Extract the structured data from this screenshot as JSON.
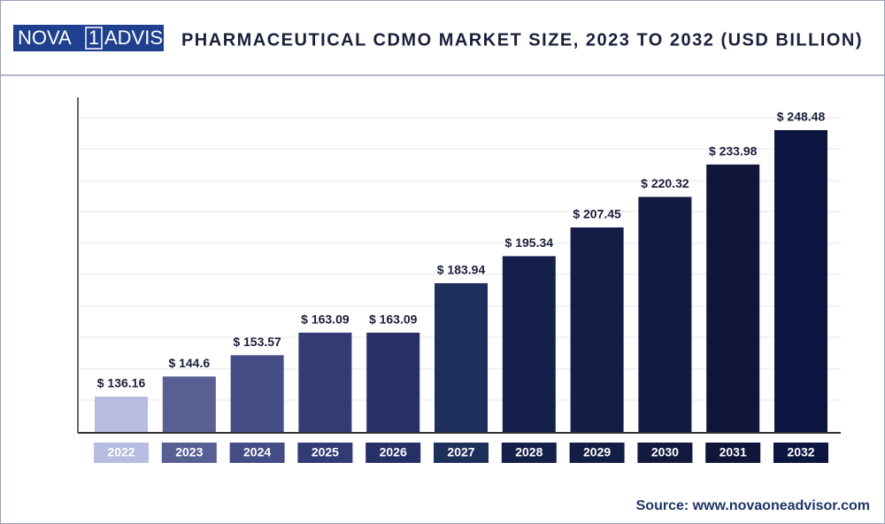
{
  "header": {
    "logo": [
      "NOVA",
      "1",
      "ADVISOR"
    ]
  },
  "chart_data": {
    "type": "bar",
    "title": "PHARMACEUTICAL CDMO MARKET SIZE, 2023 TO 2032 (USD BILLION)",
    "categories": [
      "2022",
      "2023",
      "2024",
      "2025",
      "2026",
      "2027",
      "2028",
      "2029",
      "2030",
      "2031",
      "2032"
    ],
    "values": [
      136.16,
      144.6,
      153.57,
      163.09,
      163.09,
      183.94,
      195.34,
      207.45,
      220.32,
      233.98,
      248.48
    ],
    "value_labels": [
      "$ 136.16",
      "$ 144.6",
      "$ 153.57",
      "$ 163.09",
      "$ 163.09",
      "$ 183.94",
      "$ 195.34",
      "$ 207.45",
      "$ 220.32",
      "$ 233.98",
      "$ 248.48"
    ],
    "colors": [
      "#b6bde0",
      "#585f93",
      "#444d86",
      "#323b74",
      "#262f66",
      "#1f2f5c",
      "#15204a",
      "#141d45",
      "#121a3f",
      "#0f1639",
      "#0c1440"
    ]
  },
  "source": "Source: www.novaoneadvisor.com"
}
